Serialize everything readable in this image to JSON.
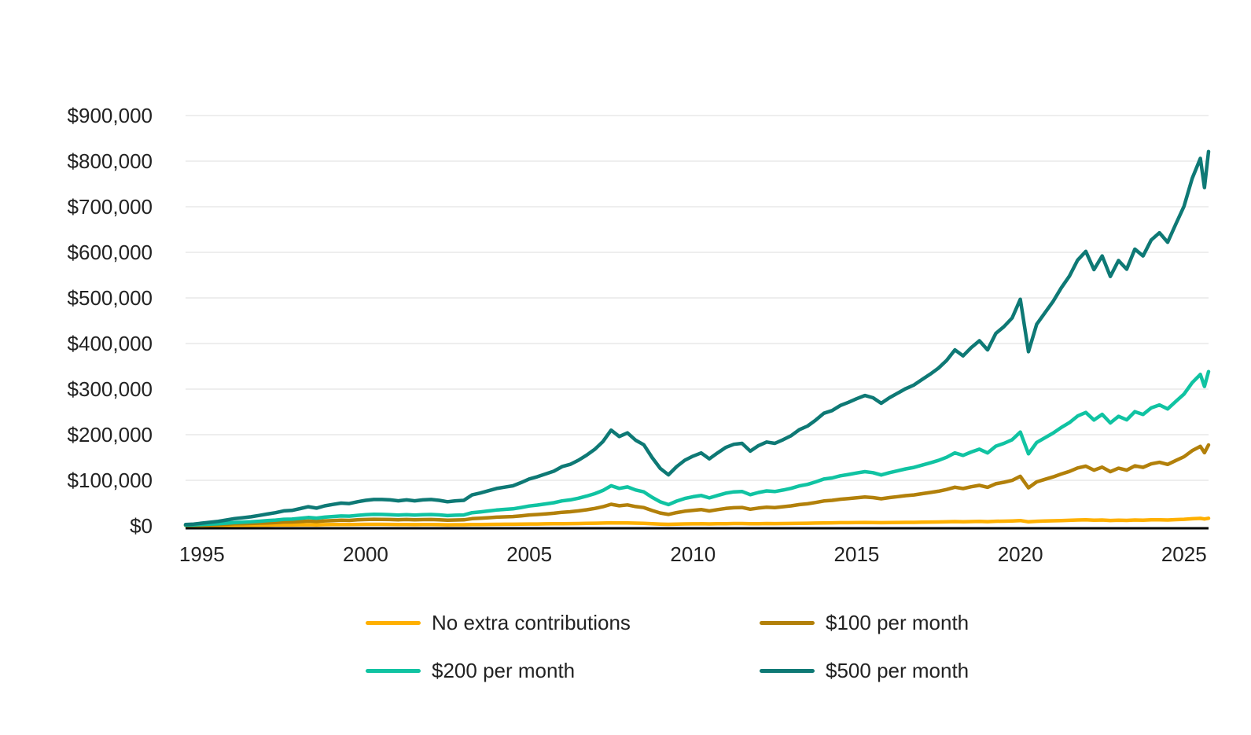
{
  "chart_data": {
    "type": "line",
    "title": "",
    "xlabel": "",
    "ylabel": "",
    "grid": {
      "horizontal": true,
      "vertical": false,
      "color": "#e8e8e8"
    },
    "axis_line_color": "#000000",
    "tick_text_color": "#222222",
    "legend_position": "bottom",
    "x_axis": {
      "range": [
        1994.5,
        2025.75
      ],
      "tick_values": [
        1995,
        2000,
        2005,
        2010,
        2015,
        2020,
        2025
      ],
      "tick_labels": [
        "1995",
        "2000",
        "2005",
        "2010",
        "2015",
        "2020",
        "2025"
      ]
    },
    "y_axis": {
      "range": [
        0,
        900000
      ],
      "tick_values": [
        0,
        100000,
        200000,
        300000,
        400000,
        500000,
        600000,
        700000,
        800000,
        900000
      ],
      "tick_labels": [
        "$0",
        "$100,000",
        "$200,000",
        "$300,000",
        "$400,000",
        "$500,000",
        "$600,000",
        "$700,000",
        "$800,000",
        "$900,000"
      ]
    },
    "x": [
      1994.5,
      1994.75,
      1995,
      1995.25,
      1995.5,
      1995.75,
      1996,
      1996.25,
      1996.5,
      1996.75,
      1997,
      1997.25,
      1997.5,
      1997.75,
      1998,
      1998.25,
      1998.5,
      1998.75,
      1999,
      1999.25,
      1999.5,
      1999.75,
      2000,
      2000.25,
      2000.5,
      2000.75,
      2001,
      2001.25,
      2001.5,
      2001.75,
      2002,
      2002.25,
      2002.5,
      2002.75,
      2003,
      2003.25,
      2003.5,
      2003.75,
      2004,
      2004.25,
      2004.5,
      2004.75,
      2005,
      2005.25,
      2005.5,
      2005.75,
      2006,
      2006.25,
      2006.5,
      2006.75,
      2007,
      2007.25,
      2007.5,
      2007.75,
      2008,
      2008.25,
      2008.5,
      2008.75,
      2009,
      2009.25,
      2009.5,
      2009.75,
      2010,
      2010.25,
      2010.5,
      2010.75,
      2011,
      2011.25,
      2011.5,
      2011.75,
      2012,
      2012.25,
      2012.5,
      2012.75,
      2013,
      2013.25,
      2013.5,
      2013.75,
      2014,
      2014.25,
      2014.5,
      2014.75,
      2015,
      2015.25,
      2015.5,
      2015.75,
      2016,
      2016.25,
      2016.5,
      2016.75,
      2017,
      2017.25,
      2017.5,
      2017.75,
      2018,
      2018.25,
      2018.5,
      2018.75,
      2019,
      2019.25,
      2019.5,
      2019.75,
      2020,
      2020.25,
      2020.5,
      2020.75,
      2021,
      2021.25,
      2021.5,
      2021.75,
      2022,
      2022.25,
      2022.5,
      2022.75,
      2023,
      2023.25,
      2023.5,
      2023.75,
      2024,
      2024.25,
      2024.5,
      2024.75,
      2025,
      2025.25,
      2025.5,
      2025.625,
      2025.75
    ],
    "series": [
      {
        "name": "No extra contributions",
        "color": "#FFB000",
        "values": [
          1000,
          1000,
          1100,
          1200,
          1300,
          1400,
          1500,
          1600,
          1600,
          1700,
          1800,
          2000,
          2200,
          2200,
          2400,
          2600,
          2300,
          2700,
          2900,
          3000,
          2900,
          3200,
          3400,
          3500,
          3400,
          3200,
          3000,
          3100,
          2800,
          3000,
          3000,
          2800,
          2400,
          2500,
          2500,
          2900,
          3100,
          3300,
          3500,
          3600,
          3700,
          3900,
          4100,
          4200,
          4400,
          4600,
          4900,
          5000,
          5200,
          5500,
          5800,
          6200,
          6800,
          6300,
          6500,
          6000,
          5600,
          4700,
          3900,
          3400,
          3900,
          4300,
          4500,
          4700,
          4300,
          4600,
          4900,
          5100,
          5100,
          4600,
          4900,
          5100,
          5000,
          5200,
          5400,
          5700,
          5900,
          6200,
          6600,
          6700,
          7000,
          7100,
          7300,
          7500,
          7300,
          7000,
          7200,
          7500,
          7700,
          7800,
          8100,
          8400,
          8600,
          9000,
          9500,
          9100,
          9500,
          9800,
          9300,
          10100,
          10400,
          10800,
          11700,
          8900,
          10200,
          10700,
          11200,
          11800,
          12300,
          13000,
          13400,
          12400,
          13000,
          11900,
          12600,
          12100,
          13000,
          12600,
          13300,
          13500,
          13000,
          13800,
          14500,
          15700,
          16500,
          15100,
          16700
        ]
      },
      {
        "name": "$100 per month",
        "color": "#B2800A",
        "values": [
          1400,
          1600,
          2100,
          2600,
          3000,
          3700,
          4400,
          4900,
          5300,
          6000,
          6600,
          7400,
          8400,
          8600,
          9500,
          10500,
          9600,
          11000,
          11700,
          12400,
          12100,
          13200,
          13900,
          14400,
          14300,
          14000,
          13400,
          13900,
          13200,
          13800,
          14000,
          13400,
          12500,
          13000,
          13200,
          15900,
          16900,
          18000,
          19200,
          19900,
          20600,
          22100,
          23900,
          25000,
          26300,
          27700,
          29900,
          31000,
          33000,
          35400,
          38200,
          42000,
          47400,
          44200,
          46000,
          42400,
          40100,
          33800,
          28300,
          25100,
          29100,
          32200,
          34200,
          35800,
          32800,
          35700,
          38300,
          39900,
          40300,
          36500,
          39100,
          40900,
          40200,
          42000,
          43900,
          46800,
          48500,
          51400,
          54700,
          56000,
          58400,
          59900,
          61600,
          63200,
          62000,
          59400,
          62000,
          64200,
          66400,
          68000,
          70700,
          73300,
          76100,
          79800,
          84800,
          81900,
          85800,
          89000,
          84600,
          92500,
          95700,
          99800,
          108800,
          83500,
          96600,
          102000,
          107400,
          113800,
          119400,
          127000,
          131100,
          122300,
          128800,
          118900,
          126500,
          122300,
          131800,
          128500,
          136000,
          139400,
          134800,
          143400,
          151800,
          165000,
          174400,
          160500,
          177600
        ]
      },
      {
        "name": "$200 per month",
        "color": "#10C3A2",
        "values": [
          1800,
          2200,
          3100,
          3900,
          4800,
          6000,
          7300,
          8200,
          9000,
          10200,
          11500,
          12800,
          14500,
          14900,
          16600,
          18400,
          17000,
          19200,
          20500,
          21800,
          21300,
          23100,
          24400,
          25300,
          25200,
          24700,
          23800,
          24700,
          23700,
          24600,
          25000,
          24100,
          22600,
          23500,
          23900,
          28900,
          30700,
          32800,
          34900,
          36200,
          37400,
          40300,
          43700,
          45700,
          48200,
          50800,
          54900,
          57000,
          60700,
          65300,
          70700,
          77700,
          88100,
          82200,
          85500,
          78800,
          74600,
          62800,
          52700,
          46800,
          54300,
          60200,
          63900,
          66800,
          61400,
          66800,
          71700,
          74700,
          75500,
          68400,
          73300,
          76700,
          75400,
          78700,
          82400,
          87800,
          91100,
          96500,
          102800,
          105200,
          109800,
          112700,
          116000,
          118900,
          116800,
          111800,
          116700,
          120900,
          125000,
          128300,
          133300,
          138200,
          143600,
          150600,
          160100,
          154700,
          162100,
          168300,
          160000,
          174900,
          181000,
          188900,
          205800,
          158100,
          182900,
          193200,
          203500,
          215900,
          226600,
          241000,
          248800,
          232200,
          244600,
          225900,
          240400,
          232500,
          250600,
          244400,
          258800,
          265300,
          256600,
          273100,
          289100,
          314200,
          332300,
          305900,
          338400
        ]
      },
      {
        "name": "$500 per month",
        "color": "#0E7975",
        "values": [
          3000,
          4000,
          6000,
          8000,
          10000,
          13000,
          16000,
          18000,
          20000,
          23000,
          26000,
          29000,
          33000,
          34000,
          38000,
          42000,
          39000,
          44000,
          47000,
          50000,
          49000,
          53000,
          56000,
          58000,
          58000,
          57000,
          55000,
          57000,
          55000,
          57000,
          58000,
          56000,
          53000,
          55000,
          56000,
          68000,
          72000,
          77000,
          82000,
          85000,
          88000,
          95000,
          103000,
          108000,
          114000,
          120000,
          130000,
          135000,
          144000,
          155000,
          168000,
          185000,
          210000,
          196000,
          204000,
          188000,
          178000,
          150000,
          126000,
          112000,
          130000,
          144000,
          153000,
          160000,
          147000,
          160000,
          172000,
          179000,
          181000,
          164000,
          176000,
          184000,
          181000,
          189000,
          198000,
          211000,
          219000,
          232000,
          247000,
          253000,
          264000,
          271000,
          279000,
          286000,
          281000,
          269000,
          281000,
          291000,
          301000,
          309000,
          321000,
          333000,
          346000,
          363000,
          386000,
          373000,
          391000,
          406000,
          386000,
          422000,
          437000,
          456000,
          497000,
          382000,
          442000,
          467000,
          492000,
          522000,
          548000,
          583000,
          602000,
          562000,
          592000,
          547000,
          582000,
          563000,
          607000,
          592000,
          627000,
          643000,
          622000,
          662000,
          701000,
          762000,
          806000,
          742000,
          821000
        ]
      }
    ],
    "legend_order": [
      0,
      1,
      2,
      3
    ]
  }
}
